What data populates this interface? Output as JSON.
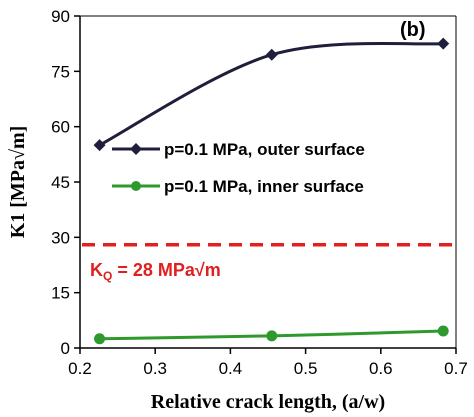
{
  "chart_data": {
    "type": "line",
    "panel_label": "(b)",
    "xlabel": "Relative crack length, (a/w)",
    "ylabel": "K1 [MPa√m]",
    "xlim": [
      0.2,
      0.7
    ],
    "ylim": [
      0,
      90
    ],
    "x_ticks": [
      "0.2",
      "0.3",
      "0.4",
      "0.5",
      "0.6",
      "0.7"
    ],
    "y_ticks": [
      "0",
      "15",
      "30",
      "45",
      "60",
      "75",
      "90"
    ],
    "grid": false,
    "legend_position": "center-right",
    "series": [
      {
        "name": "p=0.1 MPa, outer surface",
        "color": "#1f1f3d",
        "marker": "diamond",
        "x": [
          0.226,
          0.455,
          0.683
        ],
        "y": [
          55,
          79.5,
          82.5
        ]
      },
      {
        "name": "p=0.1 MPa, inner surface",
        "color": "#2e9a2e",
        "marker": "circle",
        "x": [
          0.226,
          0.455,
          0.683
        ],
        "y": [
          2.5,
          3.3,
          4.6
        ]
      }
    ],
    "reference_line": {
      "y": 28,
      "label_main": "K",
      "label_sub": "Q",
      "label_rest": " = 28 MPa√m",
      "color": "#e02020",
      "style": "dashed"
    }
  }
}
